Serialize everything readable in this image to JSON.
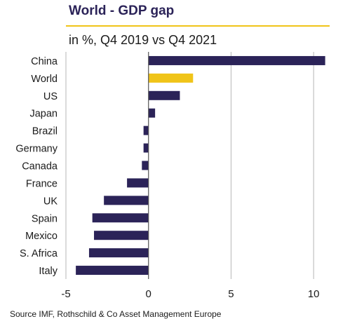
{
  "header": {
    "title": "World - GDP gap",
    "subtitle": "in %, Q4 2019 vs Q4 2021"
  },
  "footer": {
    "source": "Source IMF, Rothschild & Co Asset Management Europe"
  },
  "colors": {
    "bar": "#2b2358",
    "highlight": "#f0c419",
    "grid": "#b7b7b7",
    "axis": "#555555"
  },
  "chart_data": {
    "type": "bar",
    "orientation": "horizontal",
    "categories": [
      "China",
      "World",
      "US",
      "Japan",
      "Brazil",
      "Germany",
      "Canada",
      "France",
      "UK",
      "Spain",
      "Mexico",
      "S. Africa",
      "Italy"
    ],
    "values": [
      10.7,
      2.7,
      1.9,
      0.4,
      -0.3,
      -0.3,
      -0.4,
      -1.3,
      -2.7,
      -3.4,
      -3.3,
      -3.6,
      -4.4
    ],
    "highlight": "World",
    "xlim": [
      -5,
      10.8
    ],
    "xticks": [
      -5,
      0,
      5,
      10
    ],
    "grid": "vertical",
    "legend": "none"
  }
}
